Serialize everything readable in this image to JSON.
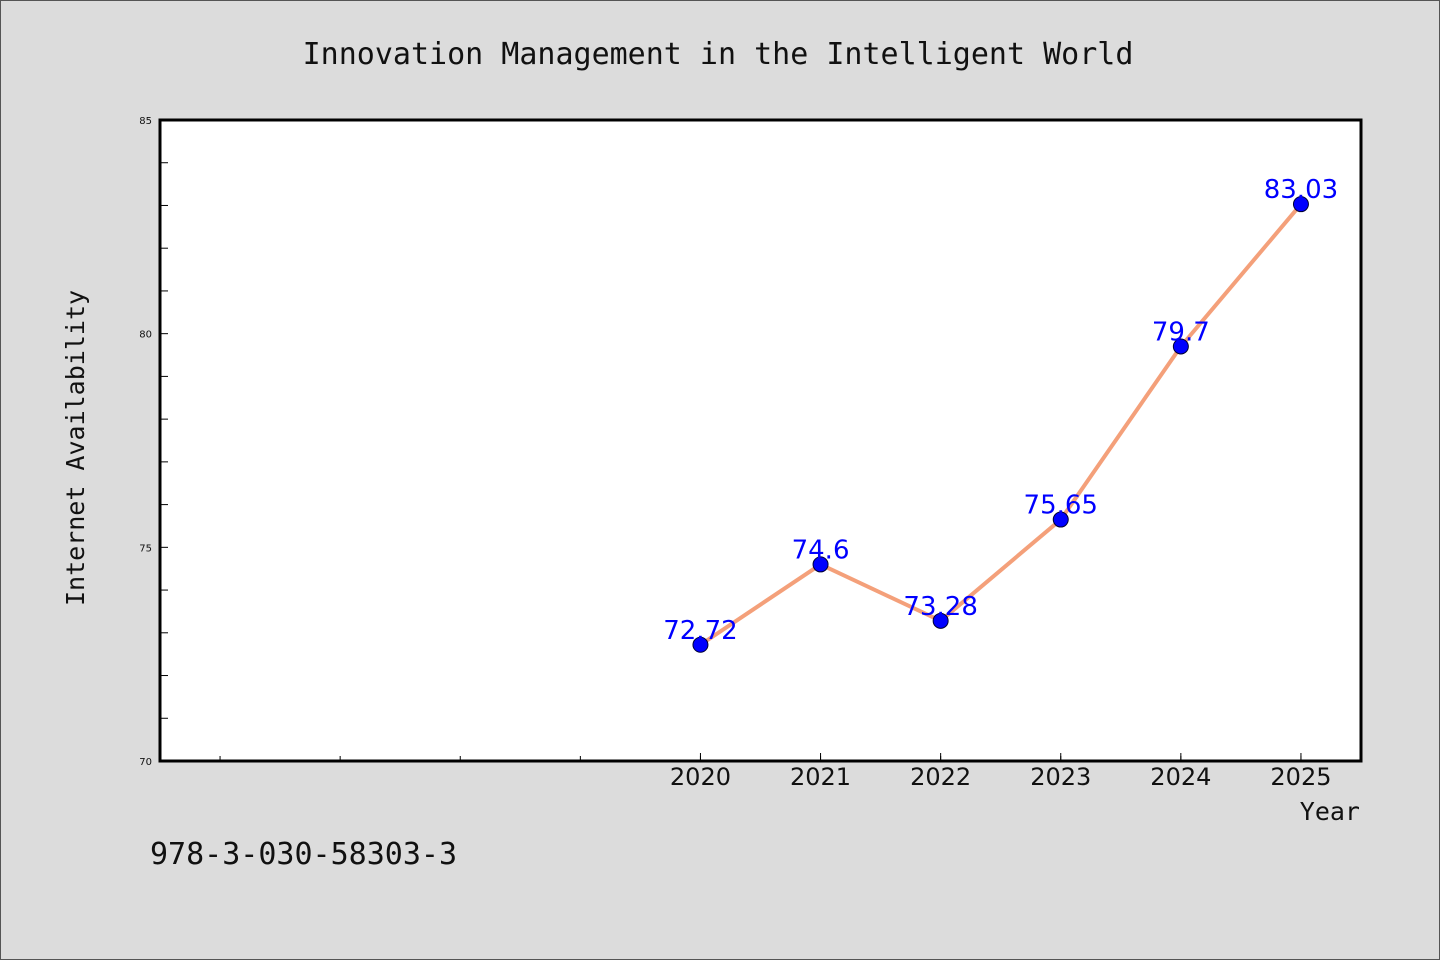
{
  "chart_data": {
    "type": "line",
    "title": "Innovation Management in the Intelligent World",
    "xlabel": "Year",
    "ylabel": "Internet Availability",
    "categories": [
      "2020",
      "2021",
      "2022",
      "2023",
      "2024",
      "2025"
    ],
    "x": [
      2020,
      2021,
      2022,
      2023,
      2024,
      2025
    ],
    "values": [
      72.72,
      74.6,
      73.28,
      75.65,
      79.7,
      83.03
    ],
    "data_labels": [
      "72.72",
      "74.6",
      "73.28",
      "75.65",
      "79.7",
      "83.03"
    ],
    "ylim": [
      70,
      85
    ],
    "y_ticks": [
      "70",
      "75",
      "80",
      "85"
    ],
    "xlim": [
      2015.5,
      2025.5
    ],
    "grid": false,
    "line_color": "#f4a07a",
    "marker_color": "#0000ff",
    "label_color": "#0000ff"
  },
  "footnote": "978-3-030-58303-3",
  "colors": {
    "background": "#dcdcdc",
    "plot_area": "#ffffff"
  }
}
